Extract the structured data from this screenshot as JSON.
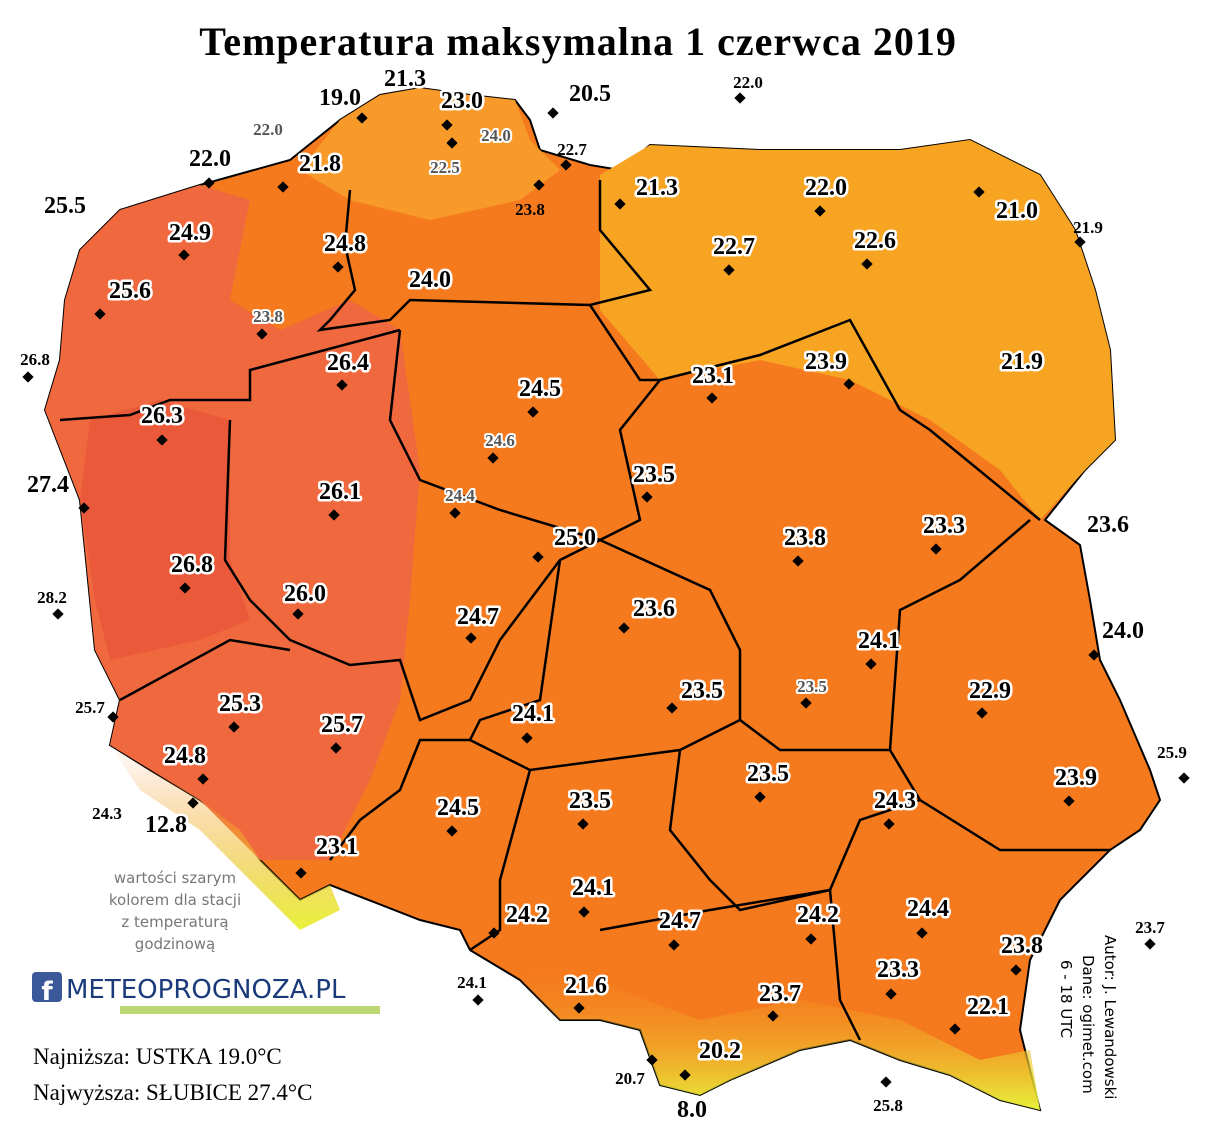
{
  "title": "Temperatura maksymalna 1 czerwca 2019",
  "stations": [
    "19.0",
    "21.3",
    "23.0",
    "20.5",
    "22.0",
    "22.0",
    "24.0",
    "22.5",
    "22.7",
    "22.0",
    "21.8",
    "23.8",
    "21.3",
    "22.0",
    "21.0",
    "21.9",
    "25.5",
    "24.9",
    "24.8",
    "22.7",
    "22.6",
    "24.0",
    "25.6",
    "23.8",
    "26.8",
    "26.4",
    "24.5",
    "23.1",
    "23.9",
    "21.9",
    "26.3",
    "24.6",
    "27.4",
    "26.1",
    "24.4",
    "23.5",
    "25.0",
    "23.8",
    "23.3",
    "23.6",
    "26.8",
    "26.0",
    "28.2",
    "24.7",
    "23.6",
    "24.0",
    "24.1",
    "23.5",
    "23.5",
    "22.9",
    "25.7",
    "25.3",
    "24.1",
    "25.7",
    "24.8",
    "23.5",
    "23.9",
    "25.9",
    "24.3",
    "12.8",
    "24.5",
    "23.5",
    "24.3",
    "23.1",
    "24.1",
    "24.2",
    "24.7",
    "24.2",
    "24.4",
    "23.7",
    "23.8",
    "24.1",
    "21.6",
    "23.3",
    "23.7",
    "22.1",
    "20.2",
    "20.7",
    "25.8",
    "8.0"
  ],
  "note": [
    "wartości szarym",
    "kolorem dla stacji",
    "z temperaturą",
    "godzinową"
  ],
  "logo": "METEOPROGNOZA.PL",
  "extremes": [
    "Najniższa: USTKA 19.0°C",
    "Najwyższa: SŁUBICE 27.4°C"
  ],
  "credits": [
    "Autor: J. Lewandowski",
    "Dane: ogimet.com",
    "6 - 18 UTC"
  ]
}
